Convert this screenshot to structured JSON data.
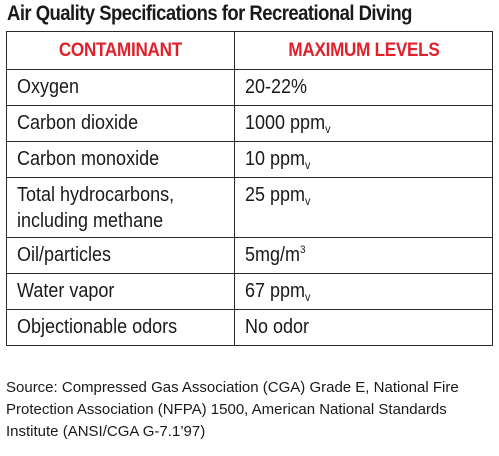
{
  "title": "Air Quality Specifications for Recreational Diving",
  "table": {
    "headers": [
      "CONTAMINANT",
      "MAXIMUM LEVELS"
    ],
    "rows": [
      {
        "contaminant": "Oxygen",
        "level": "20-22%",
        "unit_base": "",
        "unit_mark": ""
      },
      {
        "contaminant": "Carbon dioxide",
        "level": "1000 ppm",
        "unit_base": "",
        "unit_mark": "v"
      },
      {
        "contaminant": "Carbon monoxide",
        "level": "10 ppm",
        "unit_base": "",
        "unit_mark": "v"
      },
      {
        "contaminant_line1": "Total hydrocarbons,",
        "contaminant_line2": "including methane",
        "level": "25 ppm",
        "unit_mark": "v"
      },
      {
        "contaminant": "Oil/particles",
        "level": "5mg/m",
        "unit_mark": "3"
      },
      {
        "contaminant": "Water vapor",
        "level": "67 ppm",
        "unit_mark": "v"
      },
      {
        "contaminant": "Objectionable odors",
        "level": "No odor",
        "unit_mark": ""
      }
    ]
  },
  "source_note": "Source: Compressed Gas Association (CGA) Grade E, National Fire Protection Association (NFPA) 1500, American National Standards Institute (ANSI/CGA G-7.1’97)"
}
